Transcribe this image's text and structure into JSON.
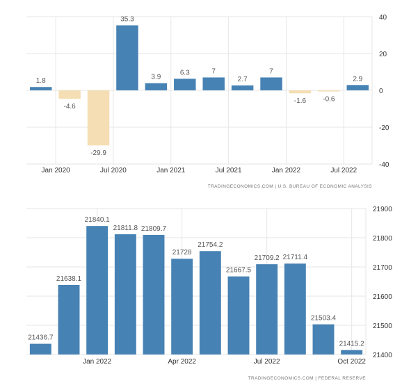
{
  "chart_data": [
    {
      "type": "bar",
      "categories": [
        "Q4 2019",
        "Q1 2020",
        "Q2 2020",
        "Q3 2020",
        "Q4 2020",
        "Q1 2021",
        "Q2 2021",
        "Q3 2021",
        "Q4 2021",
        "Q1 2022",
        "Q2 2022",
        "Q3 2022"
      ],
      "values": [
        1.8,
        -4.6,
        -29.9,
        35.3,
        3.9,
        6.3,
        7,
        2.7,
        7,
        -1.6,
        -0.6,
        2.9
      ],
      "data_labels": [
        "1.8",
        "-4.6",
        "-29.9",
        "35.3",
        "3.9",
        "6.3",
        "7",
        "2.7",
        "7",
        "-1.6",
        "-0.6",
        "2.9"
      ],
      "x_tick_labels": [
        {
          "label": "Jan 2020",
          "index": 1
        },
        {
          "label": "Jul 2020",
          "index": 3
        },
        {
          "label": "Jan 2021",
          "index": 5
        },
        {
          "label": "Jul 2021",
          "index": 7
        },
        {
          "label": "Jan 2022",
          "index": 9
        },
        {
          "label": "Jul 2022",
          "index": 11
        }
      ],
      "y_ticks": [
        40,
        20,
        0,
        -20,
        -40
      ],
      "ylim": [
        -40,
        40
      ],
      "y_axis_side": "right",
      "positive_color": "#4682b4",
      "negative_color": "#f5deb3",
      "grid": true,
      "source": "TRADINGECONOMICS.COM | U.S. BUREAU OF ECONOMIC ANALYSIS"
    },
    {
      "type": "bar",
      "categories": [
        "Nov 2021",
        "Dec 2021",
        "Jan 2022",
        "Feb 2022",
        "Mar 2022",
        "Apr 2022",
        "May 2022",
        "Jun 2022",
        "Jul 2022",
        "Aug 2022",
        "Sep 2022",
        "Oct 2022"
      ],
      "values": [
        21436.7,
        21638.1,
        21840.1,
        21811.8,
        21809.7,
        21728,
        21754.2,
        21667.5,
        21709.2,
        21711.4,
        21503.4,
        21415.2
      ],
      "data_labels": [
        "21436.7",
        "21638.1",
        "21840.1",
        "21811.8",
        "21809.7",
        "21728",
        "21754.2",
        "21667.5",
        "21709.2",
        "21711.4",
        "21503.4",
        "21415.2"
      ],
      "x_tick_labels": [
        {
          "label": "Jan 2022",
          "index": 2
        },
        {
          "label": "Apr 2022",
          "index": 5
        },
        {
          "label": "Jul 2022",
          "index": 8
        },
        {
          "label": "Oct 2022",
          "index": 11
        }
      ],
      "y_ticks": [
        21900,
        21800,
        21700,
        21600,
        21500,
        21400
      ],
      "ylim": [
        21400,
        21900
      ],
      "y_axis_side": "right",
      "bar_color": "#4682b4",
      "grid": true,
      "source": "TRADINGECONOMICS.COM | FEDERAL RESERVE"
    }
  ]
}
